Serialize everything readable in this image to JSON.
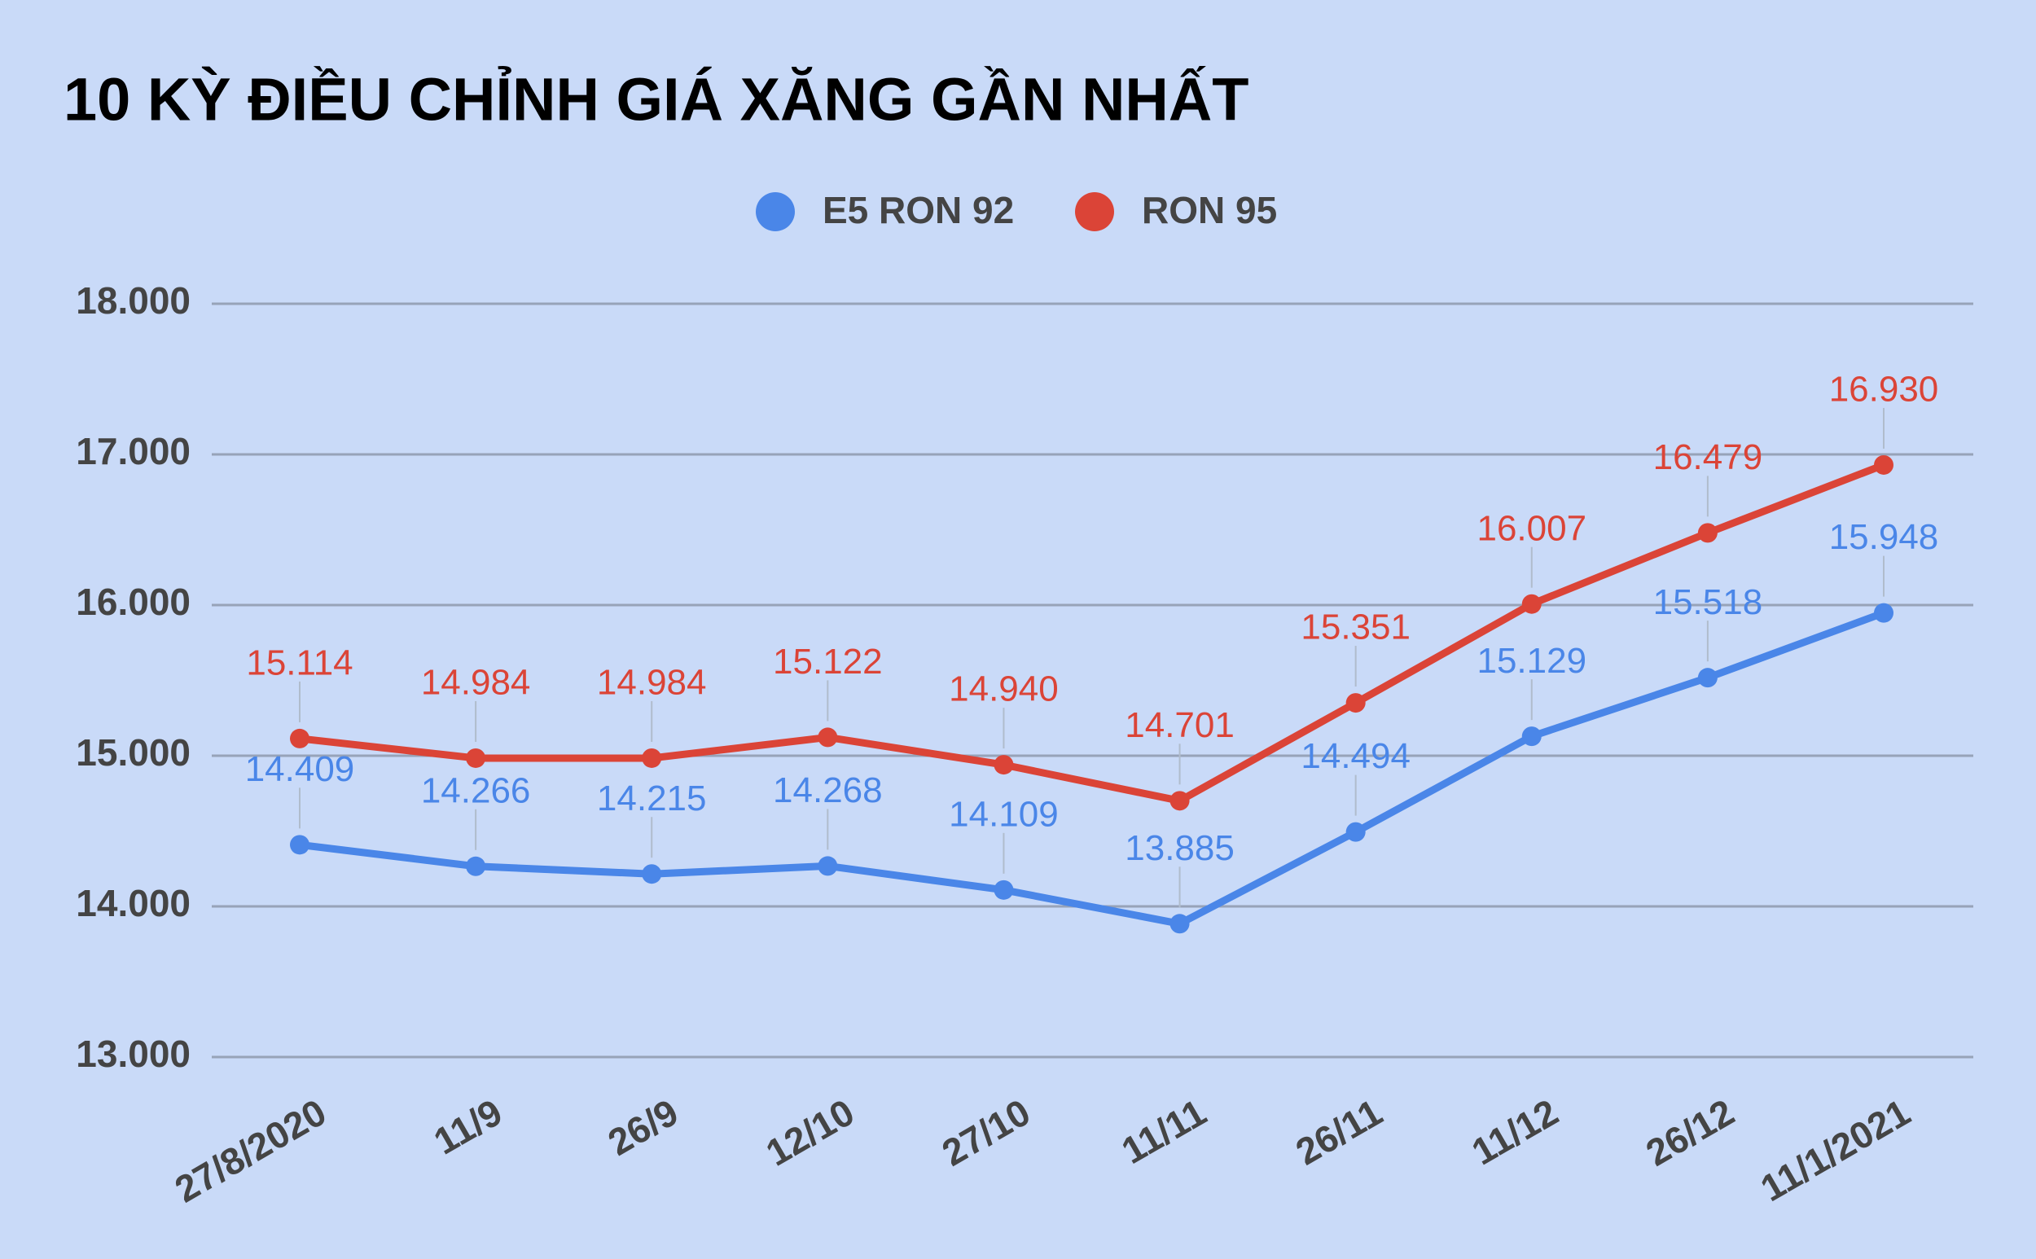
{
  "chart_data": {
    "type": "line",
    "title": "10 KỲ ĐIỀU CHỈNH GIÁ XĂNG GẦN NHẤT",
    "categories": [
      "27/8/2020",
      "11/9",
      "26/9",
      "12/10",
      "27/10",
      "11/11",
      "26/11",
      "11/12",
      "26/12",
      "11/1/2021"
    ],
    "series": [
      {
        "name": "E5 RON 92",
        "color": "#4a86e8",
        "values": [
          14409,
          14266,
          14215,
          14268,
          14109,
          13885,
          14494,
          15129,
          15518,
          15948
        ],
        "value_labels": [
          "14.409",
          "14.266",
          "14.215",
          "14.268",
          "14.109",
          "13.885",
          "14.494",
          "15.129",
          "15.518",
          "15.948"
        ]
      },
      {
        "name": "RON 95",
        "color": "#db4437",
        "values": [
          15114,
          14984,
          14984,
          15122,
          14940,
          14701,
          15351,
          16007,
          16479,
          16930
        ],
        "value_labels": [
          "15.114",
          "14.984",
          "14.984",
          "15.122",
          "14.940",
          "14.701",
          "15.351",
          "16.007",
          "16.479",
          "16.930"
        ]
      }
    ],
    "ylim": [
      13000,
      18000
    ],
    "yticks": [
      {
        "value": 13000,
        "label": "13.000"
      },
      {
        "value": 14000,
        "label": "14.000"
      },
      {
        "value": 15000,
        "label": "15.000"
      },
      {
        "value": 16000,
        "label": "16.000"
      },
      {
        "value": 17000,
        "label": "17.000"
      },
      {
        "value": 18000,
        "label": "18.000"
      }
    ],
    "grid": true
  }
}
